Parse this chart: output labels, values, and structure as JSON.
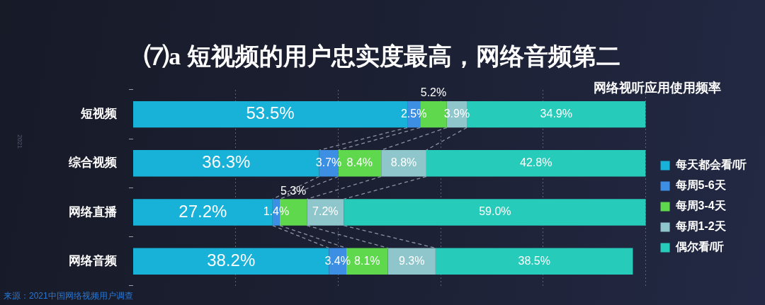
{
  "chart_data": {
    "type": "bar",
    "orientation": "horizontal",
    "stacked": true,
    "title": "⑺a 短视频的用户忠实度最高，网络音频第二",
    "legend_title": "网络视听应用使用频率",
    "categories": [
      "短视频",
      "综合视频",
      "网络直播",
      "网络音频"
    ],
    "series": [
      {
        "name": "每天都会看/听",
        "color": "#18b1d8",
        "values": [
          53.5,
          36.3,
          27.2,
          38.2
        ],
        "value_labels": [
          "53.5%",
          "36.3%",
          "27.2%",
          "38.2%"
        ]
      },
      {
        "name": "每周5-6天",
        "color": "#3d8fe3",
        "values": [
          2.5,
          3.7,
          1.4,
          3.4
        ],
        "value_labels": [
          "2.5%",
          "3.7%",
          "1.4%",
          "3.4%"
        ]
      },
      {
        "name": "每周3-4天",
        "color": "#5fd84e",
        "values": [
          5.2,
          8.4,
          5.3,
          8.1
        ],
        "value_labels": [
          "5.2%",
          "8.4%",
          "5.3%",
          "8.1%"
        ]
      },
      {
        "name": "每周1-2天",
        "color": "#8fc6cb",
        "values": [
          3.9,
          8.8,
          7.2,
          9.3
        ],
        "value_labels": [
          "3.9%",
          "8.8%",
          "7.2%",
          "9.3%"
        ]
      },
      {
        "name": "偶尔看/听",
        "color": "#27cbb9",
        "values": [
          34.9,
          42.8,
          59.0,
          38.5
        ],
        "value_labels": [
          "34.9%",
          "42.8%",
          "59.0%",
          "38.5%"
        ]
      }
    ],
    "xlim": [
      0,
      100
    ],
    "xticks": [
      {
        "value": 20,
        "label": null
      },
      {
        "value": 40,
        "label": null
      },
      {
        "value": 60,
        "label": null
      },
      {
        "value": 80,
        "label": null
      },
      {
        "value": 100,
        "label": null
      }
    ],
    "grid": "x",
    "legend": "right",
    "tick_labels": "y",
    "annotations": [
      "来源：2021中国网络视频用户调查",
      "2021"
    ]
  }
}
